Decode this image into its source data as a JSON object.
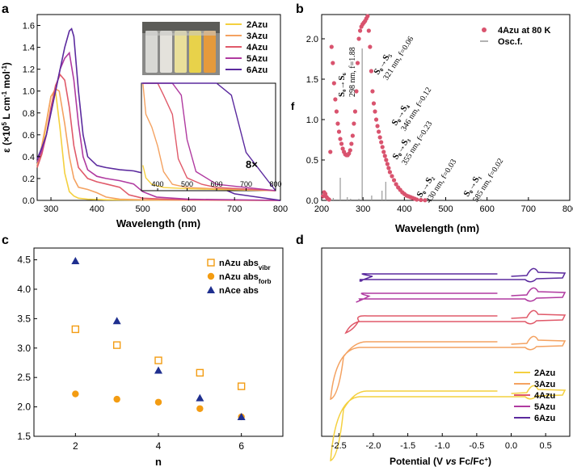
{
  "chart_data": [
    {
      "panel": "a",
      "type": "line",
      "xlabel": "Wavelength (nm)",
      "ylabel": "ε (×10⁵ L cm⁻¹ mol⁻¹)",
      "xlim": [
        270,
        800
      ],
      "ylim": [
        0,
        1.7
      ],
      "xticks": [
        300,
        400,
        500,
        600,
        700,
        800
      ],
      "yticks": [
        0.0,
        0.2,
        0.4,
        0.6,
        0.8,
        1.0,
        1.2,
        1.4,
        1.6
      ],
      "series": [
        {
          "name": "2Azu",
          "color": "#f4d03f",
          "x": [
            270,
            280,
            290,
            300,
            310,
            320,
            330,
            340,
            350,
            360,
            380,
            420,
            500,
            600,
            800
          ],
          "y": [
            0.3,
            0.45,
            0.7,
            0.95,
            1.0,
            0.65,
            0.25,
            0.08,
            0.04,
            0.02,
            0.01,
            0.005,
            0.003,
            0.002,
            0.0
          ]
        },
        {
          "name": "3Azu",
          "color": "#f4a261",
          "x": [
            270,
            280,
            290,
            300,
            310,
            318,
            330,
            340,
            350,
            360,
            380,
            400,
            420,
            450,
            500,
            600,
            800
          ],
          "y": [
            0.32,
            0.5,
            0.72,
            0.95,
            1.02,
            1.0,
            0.7,
            0.4,
            0.2,
            0.12,
            0.1,
            0.07,
            0.03,
            0.01,
            0.005,
            0.003,
            0.0
          ]
        },
        {
          "name": "4Azu",
          "color": "#e05a6a",
          "x": [
            270,
            280,
            290,
            300,
            310,
            320,
            330,
            340,
            350,
            360,
            380,
            400,
            420,
            450,
            470,
            500,
            550,
            600,
            800
          ],
          "y": [
            0.3,
            0.42,
            0.6,
            0.85,
            1.05,
            1.15,
            1.1,
            0.85,
            0.5,
            0.3,
            0.2,
            0.17,
            0.15,
            0.12,
            0.05,
            0.02,
            0.01,
            0.005,
            0.0
          ]
        },
        {
          "name": "5Azu",
          "color": "#b03aa0",
          "x": [
            270,
            280,
            290,
            300,
            310,
            320,
            330,
            340,
            350,
            360,
            370,
            380,
            400,
            420,
            450,
            480,
            500,
            530,
            600,
            800
          ],
          "y": [
            0.35,
            0.45,
            0.6,
            0.8,
            1.0,
            1.2,
            1.3,
            1.35,
            1.1,
            0.7,
            0.4,
            0.28,
            0.22,
            0.2,
            0.18,
            0.15,
            0.08,
            0.03,
            0.01,
            0.0
          ]
        },
        {
          "name": "6Azu",
          "color": "#5b2a9e",
          "x": [
            270,
            280,
            290,
            300,
            310,
            320,
            330,
            340,
            345,
            350,
            360,
            370,
            380,
            400,
            420,
            450,
            480,
            500,
            550,
            600,
            650,
            700,
            800
          ],
          "y": [
            0.38,
            0.48,
            0.6,
            0.8,
            1.0,
            1.2,
            1.4,
            1.55,
            1.57,
            1.5,
            1.0,
            0.6,
            0.4,
            0.32,
            0.3,
            0.28,
            0.27,
            0.25,
            0.22,
            0.2,
            0.15,
            0.06,
            0.0
          ]
        }
      ],
      "inset_label": "8×",
      "inset_xticks": [
        400,
        500,
        600,
        700,
        800
      ]
    },
    {
      "panel": "b",
      "type": "scatter",
      "xlabel": "Wavelength (nm)",
      "ylabel": "f",
      "xlim": [
        200,
        800
      ],
      "ylim": [
        0,
        2.3
      ],
      "xticks": [
        200,
        300,
        400,
        500,
        600,
        700,
        800
      ],
      "yticks": [
        0.0,
        0.5,
        1.0,
        1.5,
        2.0
      ],
      "legend": [
        "4Azu at 80 K",
        "Osc.f."
      ],
      "scatter_color": "#d9536e",
      "scatter": {
        "x": [
          203,
          206,
          209,
          212,
          215,
          218,
          221,
          224,
          227,
          230,
          233,
          236,
          239,
          242,
          245,
          248,
          251,
          254,
          257,
          260,
          263,
          266,
          269,
          272,
          275,
          278,
          281,
          284,
          287,
          290,
          293,
          296,
          299,
          302,
          305,
          308,
          311,
          314,
          317,
          320,
          323,
          326,
          329,
          332,
          335,
          338,
          341,
          344,
          347,
          350,
          353,
          356,
          359,
          362,
          365,
          370,
          375,
          380,
          385,
          390,
          395,
          400,
          405,
          410,
          415,
          420,
          425,
          430,
          440,
          450
        ],
        "y": [
          0.05,
          0.1,
          0.08,
          0.04,
          0.02,
          0.01,
          0.6,
          1.9,
          1.7,
          1.45,
          1.25,
          1.1,
          0.95,
          0.85,
          0.76,
          0.7,
          0.64,
          0.6,
          0.57,
          0.56,
          0.56,
          0.58,
          0.62,
          0.7,
          0.8,
          0.95,
          1.1,
          1.35,
          1.7,
          2.0,
          2.1,
          2.15,
          2.18,
          2.2,
          2.22,
          2.25,
          2.28,
          2.1,
          1.9,
          1.6,
          1.35,
          1.2,
          1.1,
          1.0,
          0.92,
          0.85,
          0.78,
          0.72,
          0.66,
          0.6,
          0.55,
          0.5,
          0.45,
          0.4,
          0.35,
          0.3,
          0.25,
          0.2,
          0.16,
          0.13,
          0.1,
          0.08,
          0.06,
          0.05,
          0.04,
          0.03,
          0.02,
          0.01,
          0.005,
          0.002
        ]
      },
      "sticks": {
        "x": [
          228,
          245,
          262,
          270,
          290,
          298,
          321,
          346,
          355,
          430,
          585
        ],
        "f": [
          0.03,
          0.28,
          0.04,
          0.02,
          0.02,
          1.88,
          0.06,
          0.12,
          0.23,
          0.03,
          0.02
        ]
      },
      "annotations": [
        {
          "label": "S₀→S₆",
          "sub": "298 nm, f=1.88"
        },
        {
          "label": "S₀→S₅",
          "sub": "321 nm, f=0.06"
        },
        {
          "label": "S₀→S₄",
          "sub": "346 nm, f=0.12"
        },
        {
          "label": "S₀→S₃",
          "sub": "355 nm, f=0.23"
        },
        {
          "label": "S₀→S₂",
          "sub": "430 nm, f=0.03"
        },
        {
          "label": "S₀→S₁",
          "sub": "585 nm, f=0.02"
        }
      ]
    },
    {
      "panel": "c",
      "type": "scatter",
      "xlabel": "n",
      "ylabel": "",
      "xlim": [
        1.0,
        7.0
      ],
      "ylim": [
        1.5,
        4.7
      ],
      "xticks": [
        2,
        4,
        6
      ],
      "yticks": [
        1.5,
        2.0,
        2.5,
        3.0,
        3.5,
        4.0,
        4.5
      ],
      "series": [
        {
          "name": "nAzu abs",
          "sub": "vibr",
          "marker": "open-square",
          "color": "#f39c12",
          "x": [
            2,
            3,
            4,
            5,
            6
          ],
          "y": [
            3.32,
            3.05,
            2.79,
            2.58,
            2.35
          ]
        },
        {
          "name": "nAzu abs",
          "sub": "forb",
          "marker": "circle",
          "color": "#f39c12",
          "x": [
            2,
            3,
            4,
            5,
            6
          ],
          "y": [
            2.22,
            2.13,
            2.08,
            1.97,
            1.83
          ]
        },
        {
          "name": "nAce abs",
          "sub": "",
          "marker": "triangle",
          "color": "#1f2f8f",
          "x": [
            2,
            3,
            4,
            5,
            6
          ],
          "y": [
            4.48,
            3.46,
            2.62,
            2.15,
            1.83
          ]
        }
      ]
    },
    {
      "panel": "d",
      "type": "line",
      "xlabel": "Potential (V vs Fc/Fc⁺)",
      "xlim": [
        -2.75,
        0.85
      ],
      "xticks": [
        -2.5,
        -2.0,
        -1.5,
        -1.0,
        -0.5,
        0.0,
        0.5
      ],
      "xtick_labels": [
        "-2.5",
        "-2.0",
        "-1.5",
        "-1.0",
        "-0.5",
        "0.0",
        "0.5"
      ],
      "series": [
        {
          "name": "2Azu",
          "color": "#f4d03f",
          "start": -2.62
        },
        {
          "name": "3Azu",
          "color": "#f4a261",
          "start": -2.62
        },
        {
          "name": "4Azu",
          "color": "#e05a6a",
          "start": -2.4
        },
        {
          "name": "5Azu",
          "color": "#b03aa0",
          "start": -2.25
        },
        {
          "name": "6Azu",
          "color": "#5b2a9e",
          "start": -2.2
        }
      ]
    }
  ],
  "labels": {
    "a": "a",
    "b": "b",
    "c": "c",
    "d": "d",
    "a_xlabel": "Wavelength (nm)",
    "b_xlabel": "Wavelength (nm)",
    "b_ylabel": "f",
    "c_xlabel": "n",
    "d_xlabel_pre": "Potential (V ",
    "d_xlabel_vs": "vs",
    "d_xlabel_post": " Fc/Fc",
    "d_xlabel_sup": "+",
    "d_xlabel_end": ")",
    "a_ylabel_pre": "ε (×10",
    "a_ylabel_sup": "5",
    "a_ylabel_mid": " L cm",
    "a_ylabel_sup2": "-1",
    "a_ylabel_mid2": " mol",
    "a_ylabel_sup3": "-1",
    "a_ylabel_end": ")"
  },
  "colors": {
    "c2": "#f4d03f",
    "c3": "#f4a261",
    "c4": "#e05a6a",
    "c5": "#b03aa0",
    "c6": "#5b2a9e",
    "pink": "#d9536e",
    "orange": "#f39c12",
    "navy": "#1f2f8f"
  }
}
